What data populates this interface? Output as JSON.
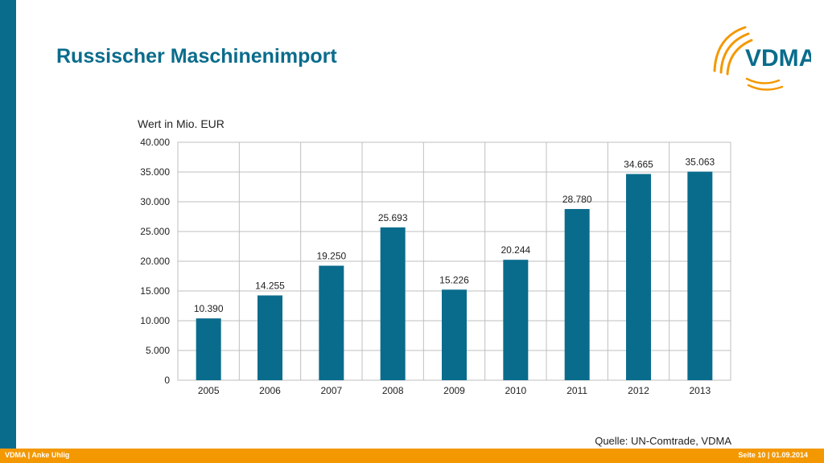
{
  "slide": {
    "title": "Russischer Maschinenimport",
    "source": "Quelle: UN-Comtrade, VDMA",
    "footer_left": "VDMA | Anke Uhlig",
    "footer_right": "Seite 10 | 01.09.2014"
  },
  "logo": {
    "text": "VDMA",
    "icon": "vdma-arcs-logo",
    "color": "#0a6c8c",
    "accent": "#f39800"
  },
  "colors": {
    "bar": "#0a6c8c",
    "accent_bar": "#0a6c8c",
    "footer": "#f39800"
  },
  "chart_data": {
    "type": "bar",
    "title": "Wert in Mio. EUR",
    "categories": [
      "2005",
      "2006",
      "2007",
      "2008",
      "2009",
      "2010",
      "2011",
      "2012",
      "2013"
    ],
    "values": [
      10390,
      14255,
      19250,
      25693,
      15226,
      20244,
      28780,
      34665,
      35063
    ],
    "value_labels": [
      "10.390",
      "14.255",
      "19.250",
      "25.693",
      "15.226",
      "20.244",
      "28.780",
      "34.665",
      "35.063"
    ],
    "yticks": [
      0,
      5000,
      10000,
      15000,
      20000,
      25000,
      30000,
      35000,
      40000
    ],
    "ytick_labels": [
      "0",
      "5.000",
      "10.000",
      "15.000",
      "20.000",
      "25.000",
      "30.000",
      "35.000",
      "40.000"
    ],
    "ylim": [
      0,
      40000
    ],
    "grid": true,
    "legend": "none"
  }
}
